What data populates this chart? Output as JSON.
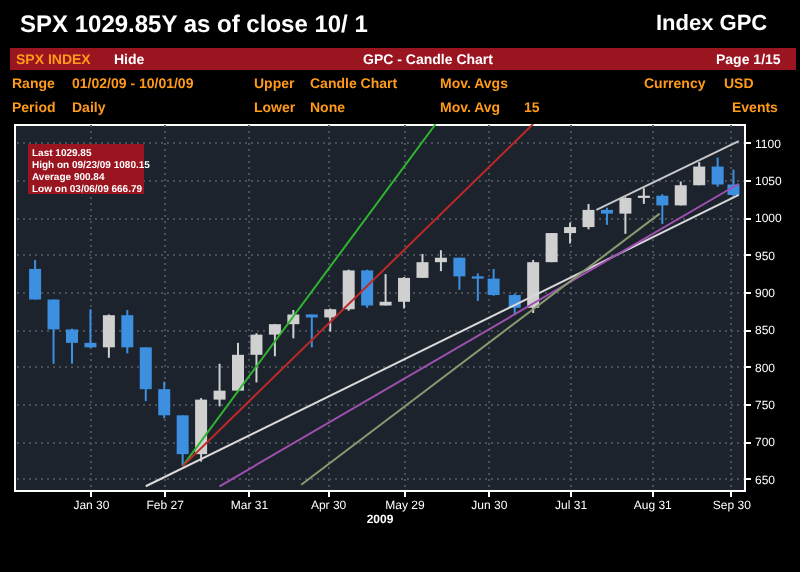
{
  "chart_data": {
    "type": "candlestick",
    "title": "GPC - Candle Chart",
    "subtitle": "SPX 1029.85Y as of close 10/ 1",
    "xlabel": "2009",
    "annotations": [
      "Index GPC",
      "SPX INDEX",
      "Hide",
      "Page 1/15",
      "Range",
      "01/02/09 - 10/01/09",
      "Upper",
      "Candle Chart",
      "Mov. Avgs",
      "Currency",
      "USD",
      "Period",
      "Daily",
      "Lower",
      "None",
      "Mov. Avg",
      "15",
      "Events",
      "Last 1029.85",
      "High on 09/23/09 1080.15",
      "Average 900.84",
      "Low on 03/06/09 666.79"
    ],
    "x": [
      "2009-01-09",
      "2009-01-16",
      "2009-01-23",
      "2009-01-30",
      "2009-02-06",
      "2009-02-13",
      "2009-02-20",
      "2009-02-27",
      "2009-03-06",
      "2009-03-13",
      "2009-03-20",
      "2009-03-27",
      "2009-04-03",
      "2009-04-10",
      "2009-04-17",
      "2009-04-24",
      "2009-05-01",
      "2009-05-08",
      "2009-05-15",
      "2009-05-22",
      "2009-05-29",
      "2009-06-05",
      "2009-06-12",
      "2009-06-19",
      "2009-06-26",
      "2009-07-02",
      "2009-07-10",
      "2009-07-17",
      "2009-07-24",
      "2009-07-31",
      "2009-08-07",
      "2009-08-14",
      "2009-08-21",
      "2009-08-28",
      "2009-09-04",
      "2009-09-11",
      "2009-09-18",
      "2009-09-25",
      "2009-10-01"
    ],
    "ohlc": [
      [
        931,
        943,
        890,
        890
      ],
      [
        890,
        890,
        804,
        850
      ],
      [
        850,
        851,
        804,
        832
      ],
      [
        832,
        877,
        825,
        826
      ],
      [
        826,
        870,
        812,
        869
      ],
      [
        869,
        876,
        818,
        826
      ],
      [
        826,
        826,
        754,
        770
      ],
      [
        770,
        780,
        731,
        735
      ],
      [
        735,
        735,
        667,
        683
      ],
      [
        683,
        758,
        673,
        756
      ],
      [
        756,
        804,
        747,
        768
      ],
      [
        768,
        832,
        768,
        816
      ],
      [
        816,
        845,
        779,
        843
      ],
      [
        843,
        857,
        814,
        857
      ],
      [
        857,
        876,
        838,
        870
      ],
      [
        870,
        870,
        826,
        866
      ],
      [
        866,
        878,
        847,
        877
      ],
      [
        877,
        930,
        875,
        929
      ],
      [
        929,
        930,
        879,
        882
      ],
      [
        882,
        924,
        882,
        887
      ],
      [
        887,
        920,
        878,
        919
      ],
      [
        919,
        951,
        919,
        940
      ],
      [
        940,
        956,
        928,
        946
      ],
      [
        946,
        946,
        903,
        921
      ],
      [
        921,
        925,
        888,
        918
      ],
      [
        918,
        931,
        895,
        896
      ],
      [
        896,
        898,
        869,
        879
      ],
      [
        879,
        943,
        872,
        940
      ],
      [
        940,
        979,
        940,
        979
      ],
      [
        979,
        993,
        965,
        987
      ],
      [
        987,
        1018,
        984,
        1010
      ],
      [
        1010,
        1013,
        990,
        1005
      ],
      [
        1005,
        1027,
        978,
        1026
      ],
      [
        1026,
        1039,
        1018,
        1029
      ],
      [
        1029,
        1031,
        991,
        1016
      ],
      [
        1016,
        1048,
        1016,
        1043
      ],
      [
        1043,
        1074,
        1043,
        1068
      ],
      [
        1068,
        1080,
        1041,
        1044
      ],
      [
        1044,
        1064,
        1027,
        1030
      ]
    ],
    "colors": [
      "#3d8fe0",
      "#3d8fe0",
      "#3d8fe0",
      "#3d8fe0",
      "#d0d0d0",
      "#3d8fe0",
      "#3d8fe0",
      "#3d8fe0",
      "#3d8fe0",
      "#d0d0d0",
      "#d0d0d0",
      "#d0d0d0",
      "#d0d0d0",
      "#d0d0d0",
      "#d0d0d0",
      "#3d8fe0",
      "#d0d0d0",
      "#d0d0d0",
      "#3d8fe0",
      "#d0d0d0",
      "#d0d0d0",
      "#d0d0d0",
      "#d0d0d0",
      "#3d8fe0",
      "#3d8fe0",
      "#3d8fe0",
      "#3d8fe0",
      "#d0d0d0",
      "#d0d0d0",
      "#d0d0d0",
      "#d0d0d0",
      "#3d8fe0",
      "#d0d0d0",
      "#d0d0d0",
      "#3d8fe0",
      "#d0d0d0",
      "#d0d0d0",
      "#3d8fe0",
      "#3d8fe0"
    ],
    "series": [
      {
        "type": "line",
        "color": "#2fb52f",
        "x": [
          "2009-03-06",
          "2009-06-10"
        ],
        "values": [
          667,
          1125
        ]
      },
      {
        "type": "line",
        "color": "#c02828",
        "x": [
          "2009-03-06",
          "2009-07-17"
        ],
        "values": [
          667,
          1125
        ]
      },
      {
        "type": "line",
        "color": "#d8d8d8",
        "x": [
          "2009-02-20",
          "2009-10-03"
        ],
        "values": [
          640,
          1030
        ]
      },
      {
        "type": "line",
        "color": "#a050b0",
        "x": [
          "2009-03-20",
          "2009-10-03"
        ],
        "values": [
          640,
          1045
        ]
      },
      {
        "type": "line",
        "color": "#8a9a70",
        "x": [
          "2009-04-20",
          "2009-09-03"
        ],
        "values": [
          642,
          1005
        ]
      },
      {
        "type": "line",
        "color": "#c8c8c8",
        "x": [
          "2009-08-10",
          "2009-10-03"
        ],
        "values": [
          1010,
          1102
        ]
      }
    ],
    "xlim": [
      "2009-01-01",
      "2009-10-05"
    ],
    "xticks": [
      {
        "value": "2009-01-30",
        "label": "Jan 30"
      },
      {
        "value": "2009-02-27",
        "label": "Feb 27"
      },
      {
        "value": "2009-03-31",
        "label": "Mar 31"
      },
      {
        "value": "2009-04-30",
        "label": "Apr 30"
      },
      {
        "value": "2009-05-29",
        "label": "May 29"
      },
      {
        "value": "2009-06-30",
        "label": "Jun 30"
      },
      {
        "value": "2009-07-31",
        "label": "Jul 31"
      },
      {
        "value": "2009-08-31",
        "label": "Aug 31"
      },
      {
        "value": "2009-09-30",
        "label": "Sep 30"
      }
    ],
    "ylim": [
      635,
      1125
    ],
    "yticks": [
      650,
      700,
      750,
      800,
      850,
      900,
      950,
      1000,
      1050,
      1100
    ],
    "grid": true,
    "line_style": "solid"
  }
}
